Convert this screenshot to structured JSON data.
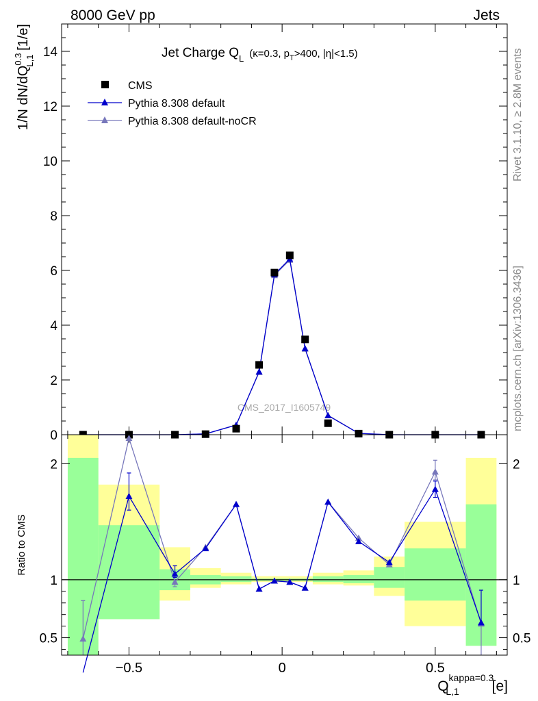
{
  "header": {
    "energy_label": "8000 GeV pp",
    "category_label": "Jets"
  },
  "side_labels": {
    "rivet": "Rivet 3.1.10, ≥ 2.8M events",
    "mcplots": "mcplots.cern.ch [arXiv:1306.3436]"
  },
  "watermark": "CMS_2017_I1605749",
  "chart_data": [
    {
      "type": "scatter",
      "panel": "main",
      "title": "Jet Charge Q_L (κ=0.3, p_T>400, |η|<1.5)",
      "title_parts": {
        "main": "Jet Charge Q",
        "main_sub": "L",
        "cond_a": "(κ=0.3, p",
        "cond_sub": "T",
        "cond_b": ">400, |η|<1.5)"
      },
      "ylabel": "1/N dN/dQ_{L,1}^{0.3} [1/e]",
      "ylabel_parts": {
        "a": "1/N dN/dQ",
        "sup": "0.3",
        "sub": "L,1",
        "b": " [1/e]"
      },
      "xlim": [
        -0.72,
        0.735
      ],
      "ylim": [
        0,
        15
      ],
      "y_ticks": [
        0,
        2,
        4,
        6,
        8,
        10,
        12,
        14
      ],
      "legend_position": "top-left",
      "series": [
        {
          "name": "CMS",
          "color": "#000000",
          "marker": "square",
          "x": [
            -0.65,
            -0.5,
            -0.35,
            -0.25,
            -0.15,
            -0.075,
            -0.025,
            0.025,
            0.075,
            0.15,
            0.25,
            0.35,
            0.5,
            0.65
          ],
          "y": [
            0.0,
            0.0,
            0.0,
            0.02,
            0.22,
            2.55,
            5.92,
            6.55,
            3.48,
            0.42,
            0.04,
            0.0,
            0.0,
            0.0
          ]
        },
        {
          "name": "Pythia 8.308 default",
          "color": "#0000cc",
          "marker": "triangle",
          "x": [
            -0.65,
            -0.5,
            -0.35,
            -0.25,
            -0.15,
            -0.075,
            -0.025,
            0.025,
            0.075,
            0.15,
            0.25,
            0.35,
            0.5,
            0.65
          ],
          "y": [
            0.0,
            0.0,
            0.0,
            0.03,
            0.35,
            2.3,
            5.85,
            6.42,
            3.15,
            0.7,
            0.05,
            0.0,
            0.0,
            0.0
          ]
        },
        {
          "name": "Pythia 8.308 default-noCR",
          "color": "#7777bb",
          "marker": "triangle",
          "x": [
            -0.65,
            -0.5,
            -0.35,
            -0.25,
            -0.15,
            -0.075,
            -0.025,
            0.025,
            0.075,
            0.15,
            0.25,
            0.35,
            0.5,
            0.65
          ],
          "y": [
            0.0,
            0.0,
            0.0,
            0.03,
            0.36,
            2.28,
            5.82,
            6.38,
            3.13,
            0.71,
            0.05,
            0.0,
            0.0,
            0.0
          ]
        }
      ]
    },
    {
      "type": "line",
      "panel": "ratio",
      "ylabel": "Ratio to CMS",
      "xlabel": "Q_{L,1}^{kappa=0.3} [e]",
      "xlabel_parts": {
        "a": "Q",
        "sup": "kappa=0.3",
        "sub": "L,1",
        "b": " [e]"
      },
      "xlim": [
        -0.72,
        0.735
      ],
      "ylim": [
        0.35,
        2.25
      ],
      "y_ticks": [
        0.5,
        1,
        2
      ],
      "y_tick_labels": [
        "0.5",
        "1",
        "2"
      ],
      "x_ticks": [
        -0.5,
        0,
        0.5
      ],
      "x_tick_labels": [
        "−0.5",
        "0",
        "0.5"
      ],
      "bins": [
        {
          "lo": -0.7,
          "hi": -0.6,
          "yellow": [
            0.35,
            2.25
          ],
          "green": [
            0.35,
            2.05
          ]
        },
        {
          "lo": -0.6,
          "hi": -0.4,
          "yellow": [
            0.66,
            1.82
          ],
          "green": [
            0.66,
            1.47
          ]
        },
        {
          "lo": -0.4,
          "hi": -0.3,
          "yellow": [
            0.82,
            1.28
          ],
          "green": [
            0.91,
            1.09
          ]
        },
        {
          "lo": -0.3,
          "hi": -0.2,
          "yellow": [
            0.93,
            1.1
          ],
          "green": [
            0.96,
            1.04
          ]
        },
        {
          "lo": -0.2,
          "hi": -0.1,
          "yellow": [
            0.96,
            1.06
          ],
          "green": [
            0.98,
            1.03
          ]
        },
        {
          "lo": -0.1,
          "hi": 0.1,
          "yellow": [
            0.98,
            1.03
          ],
          "green": [
            0.99,
            1.01
          ]
        },
        {
          "lo": 0.1,
          "hi": 0.2,
          "yellow": [
            0.96,
            1.06
          ],
          "green": [
            0.98,
            1.03
          ]
        },
        {
          "lo": 0.2,
          "hi": 0.3,
          "yellow": [
            0.95,
            1.08
          ],
          "green": [
            0.97,
            1.04
          ]
        },
        {
          "lo": 0.3,
          "hi": 0.4,
          "yellow": [
            0.86,
            1.2
          ],
          "green": [
            0.93,
            1.11
          ]
        },
        {
          "lo": 0.4,
          "hi": 0.6,
          "yellow": [
            0.6,
            1.5
          ],
          "green": [
            0.82,
            1.27
          ]
        },
        {
          "lo": 0.6,
          "hi": 0.7,
          "yellow": [
            0.43,
            2.05
          ],
          "green": [
            0.43,
            1.65
          ]
        }
      ],
      "band_colors": {
        "yellow": "#ffff99",
        "green": "#99ff99"
      },
      "series": [
        {
          "name": "Pythia 8.308 default",
          "color": "#0000cc",
          "x": [
            -0.65,
            -0.5,
            -0.35,
            -0.25,
            -0.15,
            -0.075,
            -0.025,
            0.025,
            0.075,
            0.15,
            0.25,
            0.35,
            0.5,
            0.65
          ],
          "y": [
            0.2,
            1.72,
            1.05,
            1.27,
            1.65,
            0.92,
            0.99,
            0.98,
            0.93,
            1.67,
            1.33,
            1.15,
            1.78,
            0.63
          ],
          "err_lo": [
            null,
            0.12,
            0.03,
            null,
            null,
            null,
            null,
            null,
            null,
            null,
            null,
            null,
            0.07,
            null
          ],
          "err_hi": [
            null,
            0.2,
            0.07,
            null,
            null,
            null,
            null,
            null,
            null,
            null,
            null,
            null,
            0.07,
            0.28
          ]
        },
        {
          "name": "Pythia 8.308 default-noCR",
          "color": "#7777bb",
          "x": [
            -0.65,
            -0.5,
            -0.35,
            -0.25,
            -0.15,
            -0.075,
            -0.025,
            0.025,
            0.075,
            0.15,
            0.25,
            0.35,
            0.5,
            0.65
          ],
          "y": [
            0.49,
            2.22,
            0.98,
            1.28,
            1.65,
            0.92,
            0.99,
            0.98,
            0.93,
            1.67,
            1.36,
            1.13,
            1.93,
            0.62
          ],
          "err_lo": [
            0.15,
            null,
            0.04,
            null,
            null,
            null,
            null,
            null,
            null,
            null,
            null,
            null,
            0.07,
            0.35
          ],
          "err_hi": [
            0.33,
            null,
            0.06,
            null,
            null,
            null,
            null,
            null,
            null,
            null,
            null,
            null,
            0.1,
            null
          ]
        }
      ]
    }
  ]
}
